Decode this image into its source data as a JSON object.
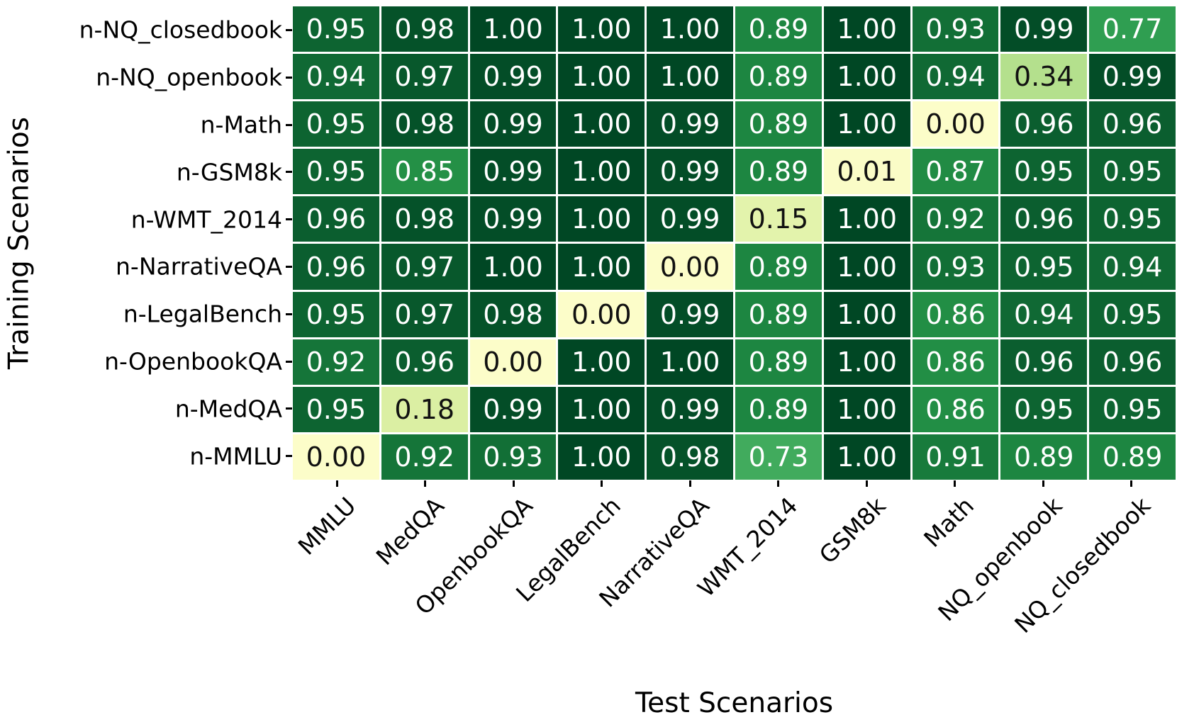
{
  "chart_data": {
    "type": "heatmap",
    "xlabel": "Test Scenarios",
    "ylabel": "Training Scenarios",
    "columns": [
      "MMLU",
      "MedQA",
      "OpenbookQA",
      "LegalBench",
      "NarrativeQA",
      "WMT_2014",
      "GSM8k",
      "Math",
      "NQ_openbook",
      "NQ_closedbook"
    ],
    "rows": [
      "n-NQ_closedbook",
      "n-NQ_openbook",
      "n-Math",
      "n-GSM8k",
      "n-WMT_2014",
      "n-NarrativeQA",
      "n-LegalBench",
      "n-OpenbookQA",
      "n-MedQA",
      "n-MMLU"
    ],
    "values": [
      [
        0.95,
        0.98,
        1.0,
        1.0,
        1.0,
        0.89,
        1.0,
        0.93,
        0.99,
        0.77
      ],
      [
        0.94,
        0.97,
        0.99,
        1.0,
        1.0,
        0.89,
        1.0,
        0.94,
        0.34,
        0.99
      ],
      [
        0.95,
        0.98,
        0.99,
        1.0,
        0.99,
        0.89,
        1.0,
        0.0,
        0.96,
        0.96
      ],
      [
        0.95,
        0.85,
        0.99,
        1.0,
        0.99,
        0.89,
        0.01,
        0.87,
        0.95,
        0.95
      ],
      [
        0.96,
        0.98,
        0.99,
        1.0,
        0.99,
        0.15,
        1.0,
        0.92,
        0.96,
        0.95
      ],
      [
        0.96,
        0.97,
        1.0,
        1.0,
        0.0,
        0.89,
        1.0,
        0.93,
        0.95,
        0.94
      ],
      [
        0.95,
        0.97,
        0.98,
        0.0,
        0.99,
        0.89,
        1.0,
        0.86,
        0.94,
        0.95
      ],
      [
        0.92,
        0.96,
        0.0,
        1.0,
        1.0,
        0.89,
        1.0,
        0.86,
        0.96,
        0.96
      ],
      [
        0.95,
        0.18,
        0.99,
        1.0,
        0.99,
        0.89,
        1.0,
        0.86,
        0.95,
        0.95
      ],
      [
        0.0,
        0.92,
        0.93,
        1.0,
        0.98,
        0.73,
        1.0,
        0.91,
        0.89,
        0.89
      ]
    ],
    "decimals": 2,
    "colormap": "YlGn",
    "color_stops": [
      [
        0.0,
        "#fcfdc9"
      ],
      [
        0.15,
        "#e3f3ac"
      ],
      [
        0.18,
        "#dbefa3"
      ],
      [
        0.34,
        "#b4e08d"
      ],
      [
        0.5,
        "#78c679"
      ],
      [
        0.73,
        "#41ab5d"
      ],
      [
        0.77,
        "#2f9e51"
      ],
      [
        0.85,
        "#249046"
      ],
      [
        0.89,
        "#1d8641"
      ],
      [
        1.0,
        "#004724"
      ]
    ],
    "dark_text_threshold": 0.5,
    "text_colors": {
      "light_cell": "#111111",
      "dark_cell": "#ffffff"
    },
    "grid_line_color": "#ffffff",
    "legend_position": "none",
    "grid": "cell-borders"
  }
}
